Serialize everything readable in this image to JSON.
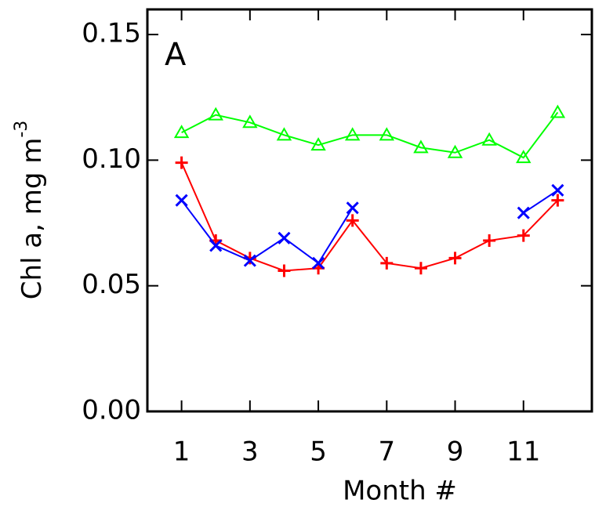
{
  "chart_data": {
    "type": "line",
    "ylabel": "Chl a, mg m",
    "ylabel_exponent": "-3",
    "xlabel": "Month #",
    "annotation": "A",
    "x": [
      1,
      2,
      3,
      4,
      5,
      6,
      7,
      8,
      9,
      10,
      11,
      12
    ],
    "series": [
      {
        "color": "#00ff00",
        "marker": "triangle",
        "values": [
          0.111,
          0.118,
          0.115,
          0.11,
          0.106,
          0.11,
          0.11,
          0.105,
          0.103,
          0.108,
          0.101,
          0.119
        ]
      },
      {
        "color": "#ff0000",
        "marker": "plus",
        "values": [
          0.099,
          0.068,
          0.061,
          0.056,
          0.057,
          0.076,
          0.059,
          0.057,
          0.061,
          0.068,
          0.07,
          0.084
        ]
      },
      {
        "color": "#0000ff",
        "marker": "x",
        "values": [
          0.084,
          0.066,
          0.06,
          0.069,
          0.059,
          0.081,
          null,
          null,
          null,
          null,
          0.079,
          0.088
        ]
      }
    ],
    "xlim": [
      0,
      13
    ],
    "ylim": [
      0,
      0.16
    ],
    "xticks": [
      1,
      3,
      5,
      7,
      9,
      11
    ],
    "yticks": [
      {
        "value": 0,
        "label": "0.00"
      },
      {
        "value": 0.05,
        "label": "0.05"
      },
      {
        "value": 0.1,
        "label": "0.10"
      },
      {
        "value": 0.15,
        "label": "0.15"
      }
    ],
    "grid": false
  }
}
